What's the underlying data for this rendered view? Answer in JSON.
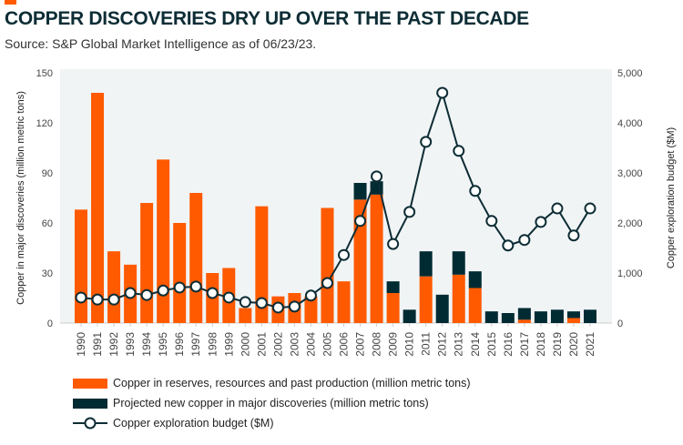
{
  "title": "COPPER DISCOVERIES DRY UP OVER THE PAST DECADE",
  "subtitle": "Source: S&P Global Market Intelligence as of 06/23/23.",
  "colors": {
    "reserves": "#ff5a00",
    "projected": "#002b33",
    "line": "#0d2d35",
    "plot_bg": "#f1f4f5"
  },
  "chart_data": {
    "type": "bar",
    "stacked": true,
    "categories": [
      "1990",
      "1991",
      "1992",
      "1993",
      "1994",
      "1995",
      "1996",
      "1997",
      "1998",
      "1999",
      "2000",
      "2001",
      "2002",
      "2003",
      "2004",
      "2005",
      "2006",
      "2007",
      "2008",
      "2009",
      "2010",
      "2011",
      "2012",
      "2013",
      "2014",
      "2015",
      "2016",
      "2017",
      "2018",
      "2019",
      "2020",
      "2021"
    ],
    "ylabel": "Copper in major discoveries (million metric tons)",
    "ylim": [
      0,
      150
    ],
    "yticks": [
      "0",
      "30",
      "60",
      "90",
      "120",
      "150"
    ],
    "y2label": "Copper exploration budget ($M)",
    "y2lim": [
      0,
      5000
    ],
    "y2ticks": [
      "0",
      "1,000",
      "2,000",
      "3,000",
      "4,000",
      "5,000"
    ],
    "legend_position": "bottom",
    "series": [
      {
        "name": "Copper in reserves, resources and past production (million metric tons)",
        "type": "bar",
        "axis": "left",
        "values": [
          68,
          138,
          43,
          35,
          72,
          98,
          60,
          78,
          30,
          33,
          9,
          70,
          16,
          18,
          16,
          69,
          25,
          74,
          77,
          18,
          0,
          28,
          0,
          29,
          21,
          0,
          0,
          2,
          0,
          0,
          3,
          0
        ]
      },
      {
        "name": "Projected new copper in major discoveries (million metric tons)",
        "type": "bar",
        "axis": "left",
        "values": [
          0,
          0,
          0,
          0,
          0,
          0,
          0,
          0,
          0,
          0,
          0,
          0,
          0,
          0,
          0,
          0,
          0,
          10,
          8,
          7,
          8,
          15,
          17,
          14,
          10,
          7,
          6,
          7,
          7,
          8,
          4,
          8
        ]
      },
      {
        "name": "Copper exploration budget ($M)",
        "type": "line",
        "axis": "right",
        "values": [
          510,
          470,
          470,
          600,
          560,
          650,
          710,
          730,
          600,
          510,
          420,
          400,
          310,
          330,
          550,
          800,
          1360,
          2040,
          2930,
          1580,
          2220,
          3620,
          4600,
          3440,
          2640,
          2040,
          1550,
          1660,
          2020,
          2290,
          1750,
          2290
        ]
      }
    ]
  }
}
